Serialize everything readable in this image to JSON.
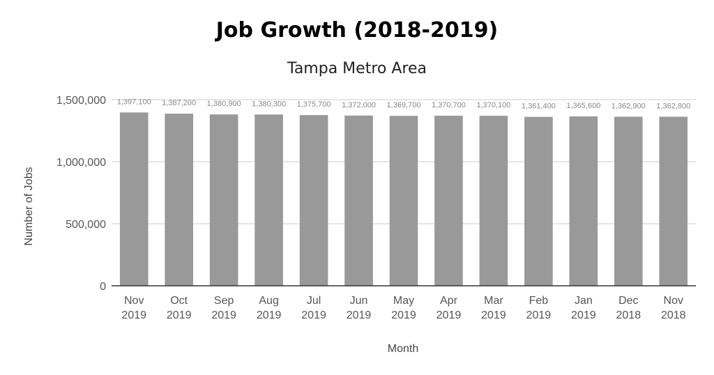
{
  "chart_data": {
    "type": "bar",
    "title": "Job Growth (2018-2019)",
    "subtitle": "Tampa Metro Area",
    "xlabel": "Month",
    "ylabel": "Number of Jobs",
    "ylim": [
      0,
      1500000
    ],
    "yticks": [
      "0",
      "500,000",
      "1,000,000",
      "1,500,000"
    ],
    "ytick_values": [
      0,
      500000,
      1000000,
      1500000
    ],
    "grid": true,
    "bar_color": "#999999",
    "categories": [
      [
        "Nov",
        "2019"
      ],
      [
        "Oct",
        "2019"
      ],
      [
        "Sep",
        "2019"
      ],
      [
        "Aug",
        "2019"
      ],
      [
        "Jul",
        "2019"
      ],
      [
        "Jun",
        "2019"
      ],
      [
        "May",
        "2019"
      ],
      [
        "Apr",
        "2019"
      ],
      [
        "Mar",
        "2019"
      ],
      [
        "Feb",
        "2019"
      ],
      [
        "Jan",
        "2019"
      ],
      [
        "Dec",
        "2018"
      ],
      [
        "Nov",
        "2018"
      ]
    ],
    "values": [
      1397100,
      1387200,
      1380900,
      1380300,
      1375700,
      1372000,
      1369700,
      1370700,
      1370100,
      1361400,
      1365600,
      1362900,
      1362800
    ],
    "data_labels": [
      "1,397,100",
      "1,387,200",
      "1,380,900",
      "1,380,300",
      "1,375,700",
      "1,372,000",
      "1,369,700",
      "1,370,700",
      "1,370,100",
      "1,361,400",
      "1,365,600",
      "1,362,900",
      "1,362,800"
    ]
  }
}
